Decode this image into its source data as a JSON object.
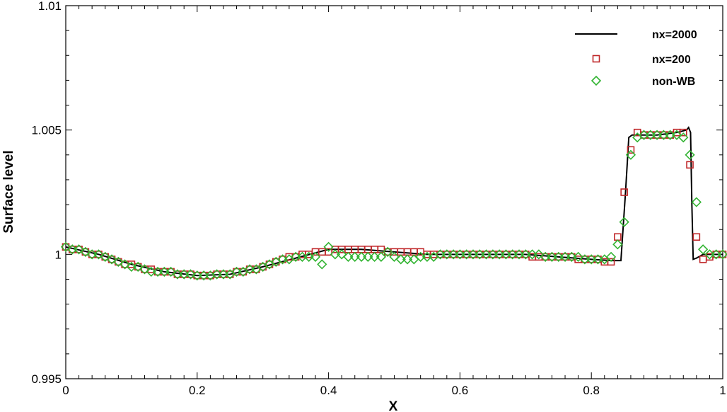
{
  "chart_data": {
    "type": "line",
    "title": "",
    "xlabel": "X",
    "ylabel": "Surface level",
    "xlim": [
      0,
      1
    ],
    "ylim": [
      0.995,
      1.01
    ],
    "x_ticks": [
      0,
      0.2,
      0.4,
      0.6,
      0.8,
      1
    ],
    "x_tick_labels": [
      "0",
      "0.2",
      "0.4",
      "0.6",
      "0.8",
      "1"
    ],
    "y_ticks": [
      0.995,
      1,
      1.005,
      1.01
    ],
    "y_tick_labels": [
      "0.995",
      "1",
      "1.005",
      "1.01"
    ],
    "grid": false,
    "legend_position": "top-right",
    "colors": {
      "nx2000": "#000000",
      "nx200": "#c0282a",
      "nonwb": "#32b432"
    },
    "series": [
      {
        "name": "nx=2000",
        "style": "line",
        "x": [
          0,
          0.05,
          0.1,
          0.15,
          0.2,
          0.25,
          0.3,
          0.35,
          0.4,
          0.45,
          0.5,
          0.55,
          0.6,
          0.65,
          0.7,
          0.75,
          0.8,
          0.83,
          0.845,
          0.852,
          0.857,
          0.862,
          0.87,
          0.9,
          0.93,
          0.945,
          0.948,
          0.951,
          0.953,
          0.955,
          0.96,
          0.97,
          1.0
        ],
        "y": [
          1.0003,
          1.0,
          0.9996,
          0.9993,
          0.99915,
          0.9992,
          0.9995,
          0.99985,
          1.0002,
          1.0002,
          1.0001,
          1.0,
          1.0,
          1.0,
          1.0,
          0.9999,
          0.9998,
          0.99975,
          0.99975,
          1.0025,
          1.0047,
          1.0048,
          1.0048,
          1.0048,
          1.0049,
          1.005,
          1.0051,
          1.0049,
          1.002,
          0.9998,
          0.99985,
          1.0,
          1.0
        ]
      },
      {
        "name": "nx=200",
        "style": "square",
        "x": [
          0,
          0.01,
          0.02,
          0.03,
          0.04,
          0.05,
          0.06,
          0.07,
          0.08,
          0.09,
          0.1,
          0.11,
          0.12,
          0.13,
          0.14,
          0.15,
          0.16,
          0.17,
          0.18,
          0.19,
          0.2,
          0.21,
          0.22,
          0.23,
          0.24,
          0.25,
          0.26,
          0.27,
          0.28,
          0.29,
          0.3,
          0.31,
          0.32,
          0.33,
          0.34,
          0.35,
          0.36,
          0.37,
          0.38,
          0.39,
          0.4,
          0.41,
          0.42,
          0.43,
          0.44,
          0.45,
          0.46,
          0.47,
          0.48,
          0.49,
          0.5,
          0.51,
          0.52,
          0.53,
          0.54,
          0.55,
          0.56,
          0.57,
          0.58,
          0.59,
          0.6,
          0.61,
          0.62,
          0.63,
          0.64,
          0.65,
          0.66,
          0.67,
          0.68,
          0.69,
          0.7,
          0.71,
          0.72,
          0.73,
          0.74,
          0.75,
          0.76,
          0.77,
          0.78,
          0.79,
          0.8,
          0.81,
          0.82,
          0.83,
          0.84,
          0.85,
          0.86,
          0.87,
          0.88,
          0.89,
          0.9,
          0.91,
          0.92,
          0.93,
          0.94,
          0.95,
          0.96,
          0.97,
          0.98,
          0.99,
          1.0
        ],
        "y": [
          1.0003,
          1.0002,
          1.0002,
          1.0001,
          1.0,
          1.0,
          0.9999,
          0.9998,
          0.9997,
          0.9996,
          0.9996,
          0.9995,
          0.9994,
          0.9994,
          0.9993,
          0.9993,
          0.9993,
          0.9992,
          0.9992,
          0.9992,
          0.99915,
          0.99915,
          0.99915,
          0.9992,
          0.9992,
          0.9992,
          0.9993,
          0.9993,
          0.9994,
          0.9994,
          0.9995,
          0.9996,
          0.9997,
          0.9998,
          0.9999,
          0.9999,
          1.0,
          1.0,
          1.0001,
          1.0001,
          1.0001,
          1.0002,
          1.0002,
          1.0002,
          1.0002,
          1.0002,
          1.0002,
          1.0002,
          1.0002,
          1.0001,
          1.0001,
          1.0001,
          1.0001,
          1.0001,
          1.0001,
          1.0,
          1.0,
          1.0,
          1.0,
          1.0,
          1.0,
          1.0,
          1.0,
          1.0,
          1.0,
          1.0,
          1.0,
          1.0,
          1.0,
          1.0,
          1.0,
          0.9999,
          0.9999,
          0.9999,
          0.9999,
          0.9999,
          0.9999,
          0.9999,
          0.9998,
          0.9998,
          0.9998,
          0.9998,
          0.9997,
          0.9997,
          1.0007,
          1.0025,
          1.0042,
          1.0049,
          1.0048,
          1.0048,
          1.0048,
          1.0048,
          1.0048,
          1.0049,
          1.0049,
          1.0036,
          1.0007,
          0.9998,
          0.9999,
          1.0,
          1.0
        ]
      },
      {
        "name": "non-WB",
        "style": "diamond",
        "x": [
          0,
          0.01,
          0.02,
          0.03,
          0.04,
          0.05,
          0.06,
          0.07,
          0.08,
          0.09,
          0.1,
          0.11,
          0.12,
          0.13,
          0.14,
          0.15,
          0.16,
          0.17,
          0.18,
          0.19,
          0.2,
          0.21,
          0.22,
          0.23,
          0.24,
          0.25,
          0.26,
          0.27,
          0.28,
          0.29,
          0.3,
          0.31,
          0.32,
          0.33,
          0.34,
          0.35,
          0.36,
          0.37,
          0.38,
          0.39,
          0.4,
          0.41,
          0.42,
          0.43,
          0.44,
          0.45,
          0.46,
          0.47,
          0.48,
          0.49,
          0.5,
          0.51,
          0.52,
          0.53,
          0.54,
          0.55,
          0.56,
          0.57,
          0.58,
          0.59,
          0.6,
          0.61,
          0.62,
          0.63,
          0.64,
          0.65,
          0.66,
          0.67,
          0.68,
          0.69,
          0.7,
          0.71,
          0.72,
          0.73,
          0.74,
          0.75,
          0.76,
          0.77,
          0.78,
          0.79,
          0.8,
          0.81,
          0.82,
          0.83,
          0.84,
          0.85,
          0.86,
          0.87,
          0.88,
          0.89,
          0.9,
          0.91,
          0.92,
          0.93,
          0.94,
          0.95,
          0.96,
          0.97,
          0.98,
          0.99,
          1.0
        ],
        "y": [
          1.0003,
          1.0002,
          1.0002,
          1.0001,
          1.0,
          1.0,
          0.9999,
          0.9998,
          0.9997,
          0.9996,
          0.9995,
          0.9995,
          0.9994,
          0.9993,
          0.9993,
          0.9993,
          0.9993,
          0.9992,
          0.9992,
          0.9992,
          0.99915,
          0.99915,
          0.99915,
          0.9992,
          0.9992,
          0.9992,
          0.9993,
          0.9993,
          0.9994,
          0.9994,
          0.9995,
          0.9996,
          0.9997,
          0.9998,
          0.9998,
          0.9999,
          0.9999,
          0.9999,
          0.9999,
          0.9996,
          1.0003,
          1.0,
          1.0,
          0.9999,
          0.9999,
          0.9999,
          0.9999,
          0.9999,
          0.9999,
          1.0001,
          0.9999,
          0.9998,
          0.9998,
          0.9998,
          0.9999,
          0.9999,
          0.9999,
          1.0,
          1.0,
          1.0,
          1.0,
          1.0,
          1.0,
          1.0,
          1.0,
          1.0,
          1.0,
          1.0,
          1.0,
          1.0,
          1.0,
          1.0,
          1.0,
          0.9999,
          0.9999,
          0.9999,
          0.9999,
          0.9999,
          0.9999,
          0.9998,
          0.9998,
          0.9998,
          0.9998,
          0.9999,
          1.0004,
          1.0013,
          1.004,
          1.0047,
          1.0048,
          1.0048,
          1.0048,
          1.0048,
          1.0048,
          1.0048,
          1.0047,
          1.004,
          1.0021,
          1.0002,
          1.0,
          1.0,
          1.0
        ]
      }
    ]
  }
}
